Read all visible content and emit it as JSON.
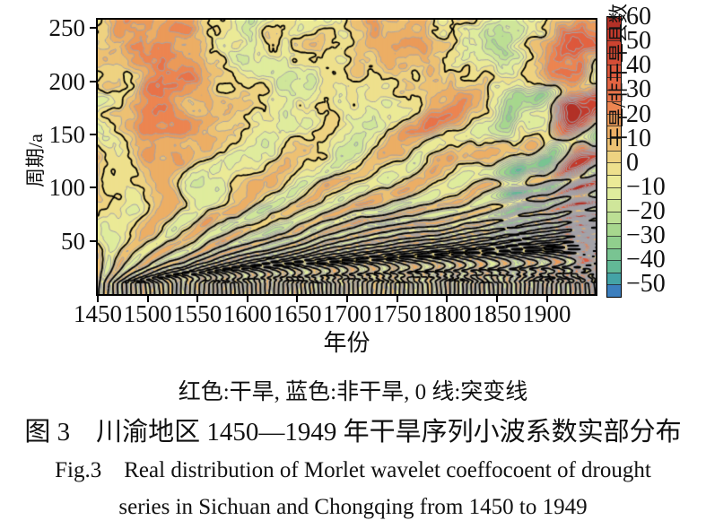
{
  "figure": {
    "note": "红色:干旱, 蓝色:非干旱, 0 线:突变线",
    "caption_zh": "图 3　川渝地区 1450—1949 年干旱序列小波系数实部分布",
    "caption_en_line1": "Fig.3　Real distribution of Morlet wavelet coeffocoent of drought",
    "caption_en_line2": "series in Sichuan and Chongqing from 1450 to 1949"
  },
  "chart_data": {
    "type": "heatmap",
    "subtype": "wavelet-real-part-contour",
    "title": "",
    "xlabel": "年份",
    "ylabel": "周期/a",
    "x_range": [
      1450,
      1949
    ],
    "x_ticks": [
      1450,
      1500,
      1550,
      1600,
      1650,
      1700,
      1750,
      1800,
      1850,
      1900
    ],
    "y_range": [
      0,
      258
    ],
    "y_ticks": [
      50,
      100,
      150,
      200,
      250
    ],
    "grid": false,
    "zero_contour_color": "#000000",
    "minor_contour_color": "#a3a3aa",
    "colorbar": {
      "label": "干旱/非干旱县数",
      "ticks": [
        60,
        50,
        40,
        30,
        20,
        10,
        0,
        -10,
        -20,
        -30,
        -40,
        -50
      ],
      "max": 60,
      "min": -55,
      "step": 5,
      "colors": [
        "#b23127",
        "#c23a2c",
        "#cc4330",
        "#d54d36",
        "#dd583c",
        "#e36442",
        "#e87349",
        "#ec8551",
        "#eb9a59",
        "#ecae65",
        "#edc173",
        "#eed281",
        "#eee08d",
        "#ebea97",
        "#dfec9d",
        "#cfe69a",
        "#bcdf94",
        "#a7d78e",
        "#90ce8d",
        "#79c492",
        "#62b996",
        "#44a3a6",
        "#3c7fbe"
      ]
    },
    "anomaly_centers": [
      {
        "year": 1520,
        "period": 195,
        "sy": 40,
        "sp": 55,
        "amp": 16
      },
      {
        "year": 1470,
        "period": 120,
        "sy": 25,
        "sp": 40,
        "amp": 8
      },
      {
        "year": 1560,
        "period": 215,
        "sy": 22,
        "sp": 30,
        "amp": 9
      },
      {
        "year": 1690,
        "period": 185,
        "sy": 45,
        "sp": 55,
        "amp": -13
      },
      {
        "year": 1620,
        "period": 70,
        "sy": 25,
        "sp": 30,
        "amp": -8
      },
      {
        "year": 1780,
        "period": 190,
        "sy": 38,
        "sp": 50,
        "amp": 18
      },
      {
        "year": 1862,
        "period": 200,
        "sy": 22,
        "sp": 50,
        "amp": -20
      },
      {
        "year": 1868,
        "period": 95,
        "sy": 18,
        "sp": 40,
        "amp": -26
      },
      {
        "year": 1900,
        "period": 150,
        "sy": 13,
        "sp": 55,
        "amp": -26
      },
      {
        "year": 1928,
        "period": 195,
        "sy": 20,
        "sp": 55,
        "amp": 40
      },
      {
        "year": 1932,
        "period": 90,
        "sy": 16,
        "sp": 45,
        "amp": 34
      },
      {
        "year": 1949,
        "period": 40,
        "sy": 15,
        "sp": 30,
        "amp": 20
      }
    ],
    "render": {
      "base_amp": 8.5,
      "wavelength_min": 9,
      "ramp": {
        "start": 1800,
        "amp": 22,
        "p_center": 130,
        "p_sigma": 110
      }
    }
  }
}
